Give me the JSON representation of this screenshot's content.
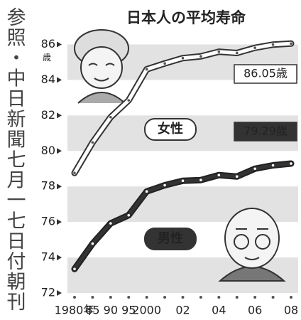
{
  "chart_data": {
    "type": "line",
    "title": "日本人の平均寿命",
    "source": "参照・中日新聞七月一七日付朝刊",
    "y_unit": "歳",
    "categories": [
      "1980年",
      "85",
      "90",
      "95",
      "2000",
      null,
      "02",
      null,
      "04",
      null,
      "06",
      null,
      "08"
    ],
    "series": [
      {
        "name": "女性",
        "color": "#ffffff",
        "outline": "#333333",
        "marker_color": "#555555",
        "values": [
          78.76,
          80.48,
          81.9,
          82.85,
          84.6,
          84.93,
          85.23,
          85.33,
          85.59,
          85.52,
          85.81,
          85.99,
          86.05
        ],
        "value_labels": [
          null,
          null,
          null,
          null,
          null,
          null,
          null,
          null,
          null,
          null,
          null,
          null,
          "86.05歳"
        ]
      },
      {
        "name": "男性",
        "color": "#333333",
        "outline": "#222222",
        "marker_color": "#ffffff",
        "values": [
          73.35,
          74.78,
          75.92,
          76.38,
          77.72,
          78.07,
          78.32,
          78.36,
          78.64,
          78.56,
          79.0,
          79.19,
          79.29
        ],
        "value_labels": [
          null,
          null,
          null,
          null,
          null,
          null,
          null,
          null,
          null,
          null,
          null,
          null,
          "79.29歳"
        ]
      }
    ],
    "ylim": [
      72,
      86.3
    ],
    "yticks": [
      72,
      74,
      76,
      78,
      80,
      82,
      84,
      86
    ],
    "grid": true
  }
}
